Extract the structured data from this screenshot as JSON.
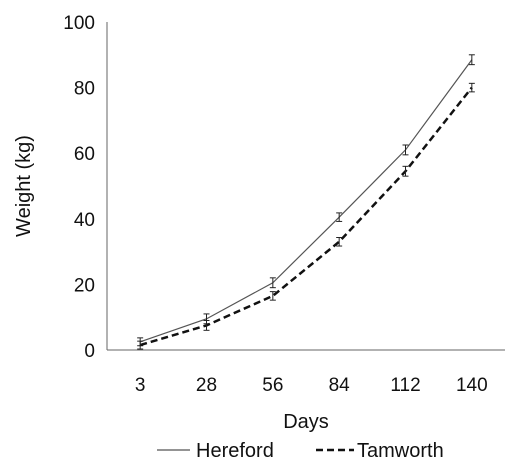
{
  "chart_data": {
    "type": "line",
    "categories": [
      "3",
      "28",
      "56",
      "84",
      "112",
      "140"
    ],
    "xlabel": "Days",
    "ylabel": "Weight (kg)",
    "ylim": [
      0,
      100
    ],
    "yticks": [
      0,
      20,
      40,
      60,
      80,
      100
    ],
    "grid": false,
    "legend_position": "bottom",
    "series": [
      {
        "name": "Hereford",
        "line_style": "solid",
        "color": "#555555",
        "values": [
          2.5,
          9.5,
          20.5,
          40.5,
          61,
          88.5
        ],
        "errors": [
          1.2,
          1.5,
          1.5,
          1.3,
          1.5,
          1.5
        ]
      },
      {
        "name": "Tamworth",
        "line_style": "dashed",
        "color": "#111111",
        "values": [
          1.5,
          7.5,
          16.5,
          33,
          54.5,
          80
        ],
        "errors": [
          1.2,
          1.5,
          1.3,
          1.3,
          1.5,
          1.3
        ]
      }
    ]
  }
}
